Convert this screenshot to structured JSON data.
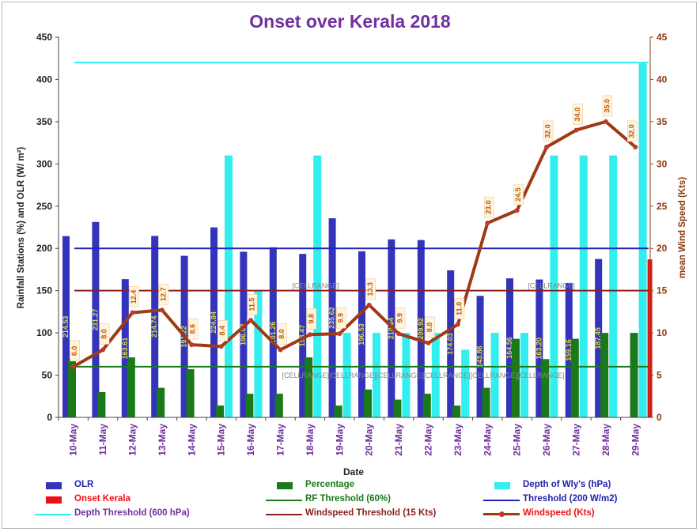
{
  "chart_data": {
    "type": "bar",
    "title": "Onset over Kerala 2018",
    "xlabel": "Date",
    "ylabel": "Rainfall Stations (%) and  OLR (W/ m²)",
    "y2label": "mean Wind Speed (Kts)",
    "ylim": [
      0,
      450
    ],
    "y2lim": [
      0,
      45
    ],
    "y_ticks": [
      "0",
      "50",
      "100",
      "150",
      "200",
      "250",
      "300",
      "350",
      "400",
      "450"
    ],
    "y2_ticks": [
      "0",
      "5",
      "10",
      "15",
      "20",
      "25",
      "30",
      "35",
      "40",
      "45"
    ],
    "grid": false,
    "legend_position": "bottom",
    "categories": [
      "10-May",
      "11-May",
      "12-May",
      "13-May",
      "14-May",
      "15-May",
      "16-May",
      "17-May",
      "18-May",
      "19-May",
      "20-May",
      "21-May",
      "22-May",
      "23-May",
      "24-May",
      "25-May",
      "26-May",
      "27-May",
      "28-May",
      "29-May"
    ],
    "series": [
      {
        "name": "OLR",
        "type": "bar",
        "color": "#3333bb",
        "values": [
          214.53,
          231.27,
          163.61,
          214.74,
          191.22,
          224.84,
          196.03,
          201.26,
          193.47,
          235.62,
          196.53,
          210.64,
          209.92,
          174.03,
          143.86,
          164.56,
          163.2,
          159.16,
          187.45,
          null
        ],
        "labels": [
          "214.53",
          "231.27",
          "163.61",
          "214.74",
          "191.22",
          "224.84",
          "196.03",
          "201.26",
          "193.47",
          "235.62",
          "196.53",
          "210.64",
          "209.92",
          "174.03",
          "143.86",
          "164.56",
          "163.20",
          "159.16",
          "187.45",
          ""
        ]
      },
      {
        "name": "Percentage",
        "type": "bar",
        "color": "#1a7a1a",
        "values": [
          69,
          30,
          71,
          35,
          57,
          14,
          28,
          28,
          71,
          14,
          33,
          21,
          28,
          14,
          35,
          93,
          69,
          93,
          100,
          100
        ]
      },
      {
        "name": "Depth of Wly's (hPa)",
        "type": "bar",
        "color": "#33eeee",
        "values": [
          null,
          null,
          null,
          null,
          null,
          310,
          150,
          null,
          310,
          100,
          100,
          100,
          100,
          80,
          100,
          100,
          310,
          310,
          310,
          420
        ]
      },
      {
        "name": "Onset Kerala",
        "type": "bar",
        "color": "#ee1111",
        "values": [
          null,
          null,
          null,
          null,
          null,
          null,
          null,
          null,
          null,
          null,
          null,
          null,
          null,
          null,
          null,
          null,
          null,
          null,
          null,
          187
        ]
      },
      {
        "name": "Windspeed (Kts)",
        "type": "line",
        "axis": "right",
        "color": "#9e3a14",
        "values": [
          6.0,
          8.0,
          12.4,
          12.7,
          8.6,
          8.4,
          11.5,
          8.0,
          9.8,
          9.9,
          13.3,
          9.9,
          8.8,
          11.0,
          23.0,
          24.5,
          32.0,
          34.0,
          35.0,
          32.0
        ],
        "labels": [
          "6.0",
          "8.0",
          "12.4",
          "12.7",
          "8.6",
          "8.4",
          "11.5",
          "8.0",
          "9.8",
          "9.9",
          "13.3",
          "9.9",
          "8.8",
          "11.0",
          "23.0",
          "24.5",
          "32.0",
          "34.0",
          "35.0",
          "32.0"
        ]
      }
    ],
    "thresholds": [
      {
        "name": "Depth Threshold (600 hPa)",
        "value": 420,
        "color": "#33eeee"
      },
      {
        "name": "Threshold (200 W/m2)",
        "value": 200,
        "color": "#2222bb"
      },
      {
        "name": "Windspeed Threshold (15 Kts)",
        "value": 150,
        "color": "#8b2020"
      },
      {
        "name": "RF Threshold (60%)",
        "value": 60,
        "color": "#1a7a1a"
      }
    ],
    "annotations": [
      "[CELLRANGE]",
      "[CELLRANGE]",
      "[CELLRANGE][CELLRANGE][CELLRANGE][CELLRANGE][CELLRANGE][CELLRANGE]"
    ]
  },
  "legend": [
    {
      "label": "OLR",
      "color": "#3333bb",
      "text_color": "#2222aa"
    },
    {
      "label": "Percentage",
      "color": "#1a7a1a",
      "text_color": "#1a7a1a"
    },
    {
      "label": "Depth of Wly's (hPa)",
      "color": "#33eeee",
      "text_color": "#2222aa"
    },
    {
      "label": "Onset Kerala",
      "color": "#ee1111",
      "text_color": "#ee1111"
    },
    {
      "label": "RF Threshold (60%)",
      "color": "#1a7a1a",
      "text_color": "#1a7a1a"
    },
    {
      "label": "Threshold (200 W/m2)",
      "color": "#2222bb",
      "text_color": "#2222aa"
    },
    {
      "label": "Depth Threshold (600 hPa)",
      "color": "#33eeee",
      "text_color": "#7030a0"
    },
    {
      "label": "Windspeed Threshold (15 Kts)",
      "color": "#8b2020",
      "text_color": "#8b2020"
    },
    {
      "label": "Windspeed (Kts)",
      "color": "#9e3a14",
      "text_color": "#ee1111"
    }
  ]
}
